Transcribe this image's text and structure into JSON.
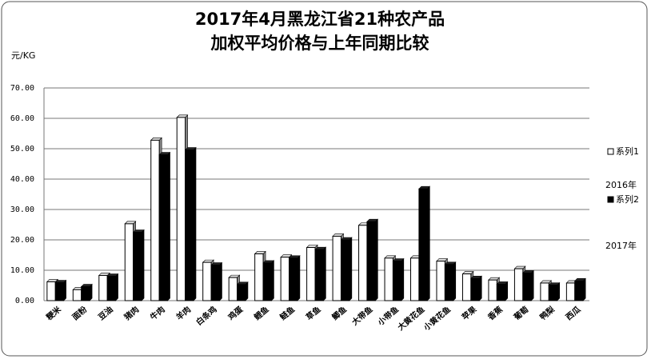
{
  "chart_data": {
    "type": "bar",
    "title": [
      "2017年4月黑龙江省21种农产品",
      "加权平均价格与上年同期比较"
    ],
    "y_label": "元/KG",
    "categories": [
      "粳米",
      "面粉",
      "豆油",
      "猪肉",
      "牛肉",
      "羊肉",
      "白条鸡",
      "鸡蛋",
      "鲤鱼",
      "鲢鱼",
      "草鱼",
      "鲫鱼",
      "大带鱼",
      "小带鱼",
      "大黄花鱼",
      "小黄花鱼",
      "苹果",
      "香蕉",
      "葡萄",
      "鸭梨",
      "西瓜"
    ],
    "series": [
      {
        "name": "系列1",
        "color": "#ffffff",
        "values": [
          6.2,
          3.6,
          8.3,
          25.3,
          52.8,
          60.3,
          12.6,
          7.6,
          15.4,
          14.3,
          17.5,
          21.2,
          24.8,
          14.0,
          14.0,
          13.0,
          8.8,
          6.8,
          10.5,
          5.8,
          5.8
        ]
      },
      {
        "name": "系列2",
        "color": "#000000",
        "values": [
          5.9,
          4.6,
          8.0,
          22.5,
          48.0,
          49.6,
          11.7,
          5.3,
          12.4,
          14.0,
          16.8,
          20.0,
          26.0,
          13.0,
          36.8,
          11.9,
          7.3,
          5.4,
          9.1,
          5.1,
          6.5
        ]
      }
    ],
    "annotations": [
      "2016年",
      "2017年"
    ],
    "ylim": [
      0,
      70
    ],
    "yticks": [
      {
        "value": 0,
        "label": "0.00"
      },
      {
        "value": 10,
        "label": "10.00"
      },
      {
        "value": 20,
        "label": "20.00"
      },
      {
        "value": 30,
        "label": "30.00"
      },
      {
        "value": 40,
        "label": "40.00"
      },
      {
        "value": 50,
        "label": "50.00"
      },
      {
        "value": 60,
        "label": "60.00"
      },
      {
        "value": 70,
        "label": "70.00"
      }
    ],
    "grid": true
  }
}
